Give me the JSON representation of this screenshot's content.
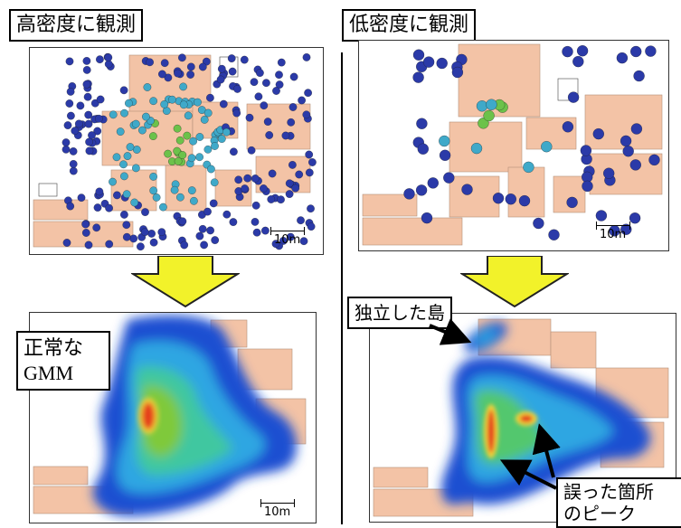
{
  "left": {
    "title": "高密度に観測",
    "scale_label": "10m",
    "scale_label_bottom": "10m",
    "callout_line1": "正常な",
    "callout_line2": "GMM"
  },
  "right": {
    "title": "低密度に観測",
    "scale_label": "10m",
    "callout_island": "独立した島",
    "callout_peak_line1": "誤った箇所",
    "callout_peak_line2": "のピーク"
  },
  "colors": {
    "room": "#f3c3a6",
    "arrow": "#f2f22a",
    "dot_dark": "#2b3aa8",
    "dot_teal": "#3fa9c9",
    "dot_green": "#6cc24a",
    "dot_orange": "#f0a030"
  }
}
